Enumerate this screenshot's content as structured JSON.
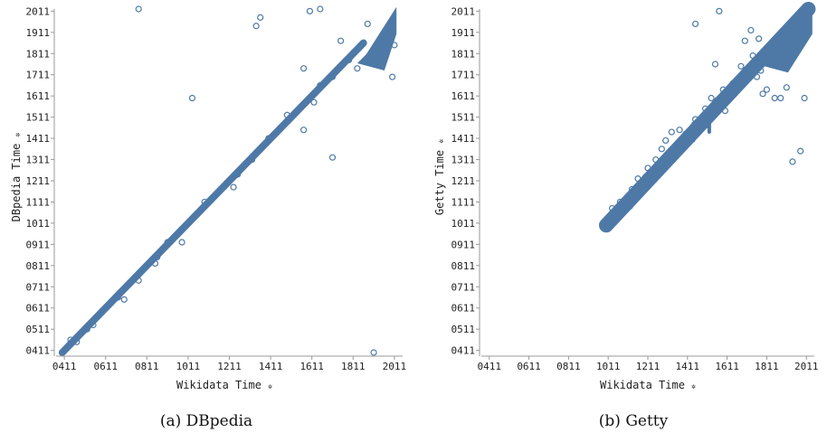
{
  "colors": {
    "series": "#4e79a7"
  },
  "chart_data": [
    {
      "type": "scatter",
      "id": "dbpedia",
      "caption": "(a) DBpedia",
      "xlabel": "Wikidata Time",
      "ylabel": "DBpedia Time",
      "sort_glyph": "✲",
      "xlim": [
        371,
        2051
      ],
      "ylim": [
        401,
        2021
      ],
      "xticks": [
        "0411",
        "0611",
        "0811",
        "1011",
        "1211",
        "1411",
        "1611",
        "1811",
        "2011"
      ],
      "yticks": [
        "0411",
        "0511",
        "0611",
        "0711",
        "0811",
        "0911",
        "1011",
        "1111",
        "1211",
        "1311",
        "1411",
        "1511",
        "1611",
        "1711",
        "1811",
        "1911",
        "2011"
      ],
      "trend": {
        "x": [
          401,
          1861
        ],
        "y": [
          401,
          1861
        ]
      },
      "dense_cluster": {
        "x": [
          1831,
          2021
        ],
        "y": [
          1791,
          2031
        ]
      },
      "points": [
        [
          771,
          2021
        ],
        [
          1341,
          1941
        ],
        [
          1361,
          1981
        ],
        [
          1031,
          1601
        ],
        [
          1711,
          1321
        ],
        [
          1571,
          1451
        ],
        [
          1911,
          401
        ],
        [
          2001,
          1701
        ],
        [
          1571,
          1741
        ],
        [
          1601,
          2011
        ],
        [
          1651,
          2021
        ],
        [
          1491,
          1521
        ],
        [
          1401,
          1411
        ],
        [
          1251,
          1241
        ],
        [
          1091,
          1111
        ],
        [
          911,
          921
        ],
        [
          861,
          851
        ],
        [
          621,
          621
        ],
        [
          471,
          451
        ],
        [
          441,
          461
        ],
        [
          981,
          921
        ],
        [
          771,
          741
        ],
        [
          701,
          651
        ],
        [
          671,
          661
        ],
        [
          1231,
          1181
        ],
        [
          1621,
          1581
        ],
        [
          1791,
          1781
        ],
        [
          1751,
          1871
        ],
        [
          1831,
          1741
        ],
        [
          2011,
          1851
        ],
        [
          1981,
          1941
        ],
        [
          1881,
          1951
        ],
        [
          1711,
          1701
        ],
        [
          1651,
          1661
        ],
        [
          1321,
          1311
        ],
        [
          1151,
          1151
        ],
        [
          1461,
          1461
        ],
        [
          551,
          531
        ],
        [
          521,
          511
        ],
        [
          851,
          821
        ]
      ]
    },
    {
      "type": "scatter",
      "id": "getty",
      "caption": "(b) Getty",
      "xlabel": "Wikidata Time",
      "ylabel": "Getty Time",
      "sort_glyph": "✲",
      "xlim": [
        371,
        2051
      ],
      "ylim": [
        401,
        2021
      ],
      "xticks": [
        "0411",
        "0611",
        "0811",
        "1011",
        "1211",
        "1411",
        "1611",
        "1811",
        "2011"
      ],
      "yticks": [
        "0411",
        "0511",
        "0611",
        "0711",
        "0811",
        "0911",
        "1011",
        "1111",
        "1211",
        "1311",
        "1411",
        "1511",
        "1611",
        "1711",
        "1811",
        "1911",
        "2011"
      ],
      "trend": {
        "x": [
          1001,
          2021
        ],
        "y": [
          1001,
          2021
        ]
      },
      "dense_cluster": {
        "x": [
          1781,
          2041
        ],
        "y": [
          1781,
          2031
        ]
      },
      "points": [
        [
          1001,
          1001
        ],
        [
          1011,
          1031
        ],
        [
          1031,
          1081
        ],
        [
          1071,
          1111
        ],
        [
          1101,
          1081
        ],
        [
          1131,
          1171
        ],
        [
          1161,
          1221
        ],
        [
          1151,
          1141
        ],
        [
          1201,
          1231
        ],
        [
          1211,
          1271
        ],
        [
          1251,
          1311
        ],
        [
          1281,
          1361
        ],
        [
          1301,
          1401
        ],
        [
          1331,
          1441
        ],
        [
          1371,
          1451
        ],
        [
          1401,
          1431
        ],
        [
          1431,
          1431
        ],
        [
          1451,
          1501
        ],
        [
          1481,
          1481
        ],
        [
          1501,
          1551
        ],
        [
          1531,
          1601
        ],
        [
          1561,
          1591
        ],
        [
          1591,
          1641
        ],
        [
          1601,
          1541
        ],
        [
          1551,
          1761
        ],
        [
          1571,
          2011
        ],
        [
          1661,
          1641
        ],
        [
          1681,
          1751
        ],
        [
          1701,
          1871
        ],
        [
          1731,
          1921
        ],
        [
          1741,
          1801
        ],
        [
          1761,
          1701
        ],
        [
          1781,
          1731
        ],
        [
          1811,
          1641
        ],
        [
          1851,
          1601
        ],
        [
          1881,
          1601
        ],
        [
          1911,
          1651
        ],
        [
          1941,
          1301
        ],
        [
          1981,
          1351
        ],
        [
          2001,
          1601
        ],
        [
          1451,
          1951
        ],
        [
          1771,
          1881
        ],
        [
          1791,
          1621
        ],
        [
          1281,
          1281
        ],
        [
          1381,
          1401
        ],
        [
          1121,
          1091
        ],
        [
          1221,
          1251
        ],
        [
          1501,
          1471
        ],
        [
          1641,
          1671
        ]
      ]
    }
  ]
}
